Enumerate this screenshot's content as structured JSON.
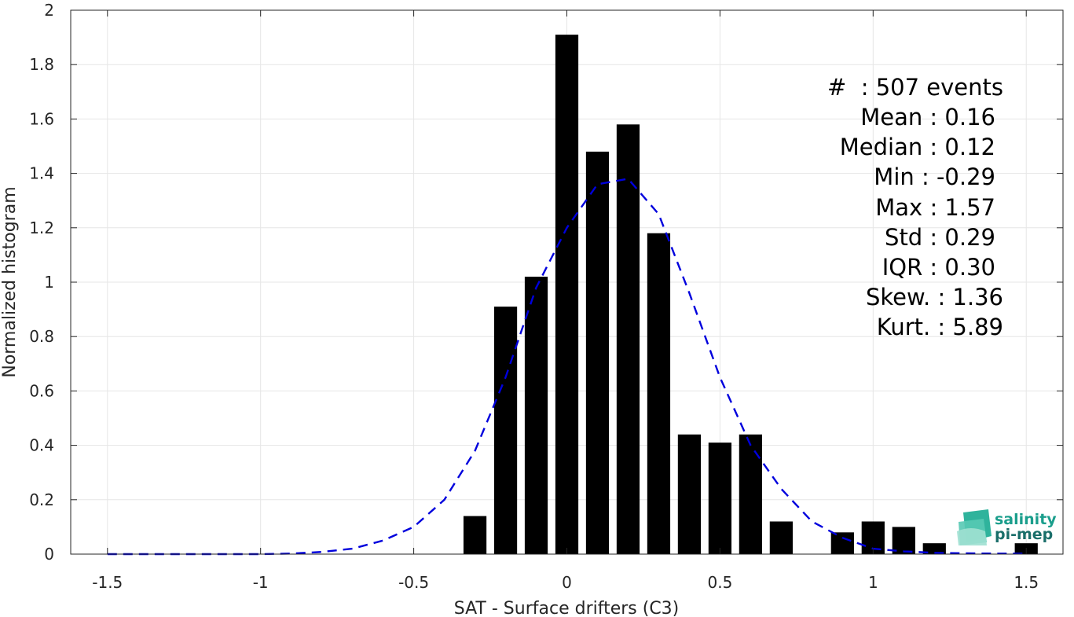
{
  "chart_data": {
    "type": "bar",
    "xlabel": "SAT - Surface drifters (C3)",
    "ylabel": "Normalized histogram",
    "xlim": [
      -1.62,
      1.62
    ],
    "ylim": [
      0,
      2
    ],
    "grid": true,
    "x_ticks": [
      -1.5,
      -1,
      -0.5,
      0,
      0.5,
      1,
      1.5
    ],
    "x_tick_labels": [
      "-1.5",
      "-1",
      "-0.5",
      "0",
      "0.5",
      "1",
      "1.5"
    ],
    "y_ticks": [
      0,
      0.2,
      0.4,
      0.6,
      0.8,
      1,
      1.2,
      1.4,
      1.6,
      1.8,
      2
    ],
    "y_tick_labels": [
      "0",
      "0.2",
      "0.4",
      "0.6",
      "0.8",
      "1",
      "1.2",
      "1.4",
      "1.6",
      "1.8",
      "2"
    ],
    "bar_width": 0.075,
    "bars": [
      {
        "x": -0.3,
        "y": 0.14
      },
      {
        "x": -0.2,
        "y": 0.91
      },
      {
        "x": -0.1,
        "y": 1.02
      },
      {
        "x": 0.0,
        "y": 1.91
      },
      {
        "x": 0.1,
        "y": 1.48
      },
      {
        "x": 0.2,
        "y": 1.58
      },
      {
        "x": 0.3,
        "y": 1.18
      },
      {
        "x": 0.4,
        "y": 0.44
      },
      {
        "x": 0.5,
        "y": 0.41
      },
      {
        "x": 0.6,
        "y": 0.44
      },
      {
        "x": 0.7,
        "y": 0.12
      },
      {
        "x": 0.9,
        "y": 0.08
      },
      {
        "x": 1.0,
        "y": 0.12
      },
      {
        "x": 1.1,
        "y": 0.1
      },
      {
        "x": 1.2,
        "y": 0.04
      },
      {
        "x": 1.5,
        "y": 0.04
      }
    ],
    "fit_curve": {
      "style": "dashed",
      "color": "#0000dd",
      "x": [
        -1.5,
        -1.4,
        -1.3,
        -1.2,
        -1.1,
        -1.0,
        -0.9,
        -0.8,
        -0.7,
        -0.6,
        -0.5,
        -0.4,
        -0.3,
        -0.2,
        -0.1,
        0.0,
        0.1,
        0.2,
        0.3,
        0.4,
        0.5,
        0.6,
        0.7,
        0.8,
        0.9,
        1.0,
        1.1,
        1.2,
        1.3,
        1.4,
        1.5
      ],
      "y": [
        0.0,
        0.0,
        0.0,
        0.0,
        0.0,
        0.0,
        0.002,
        0.008,
        0.02,
        0.05,
        0.1,
        0.2,
        0.38,
        0.65,
        0.98,
        1.2,
        1.36,
        1.38,
        1.25,
        0.96,
        0.65,
        0.4,
        0.24,
        0.12,
        0.06,
        0.02,
        0.01,
        0.005,
        0.003,
        0.002,
        0.002
      ]
    },
    "colors": {
      "bars": "#000000",
      "fit": "#0000dd",
      "grid": "#e6e6e6",
      "axis": "#262626"
    }
  },
  "stats": [
    "#  : 507 events",
    "Mean : 0.16",
    "Median : 0.12",
    "Min : -0.29",
    "Max : 1.57",
    "Std : 0.29",
    "IQR : 0.30",
    "Skew. : 1.36",
    "Kurt. : 5.89"
  ],
  "logo": {
    "line1": "salinity",
    "line2": "pi-mep",
    "icon": "salinity-wave-icon",
    "color_line1": "#1a9e8c",
    "color_line2": "#1a6e6a"
  }
}
